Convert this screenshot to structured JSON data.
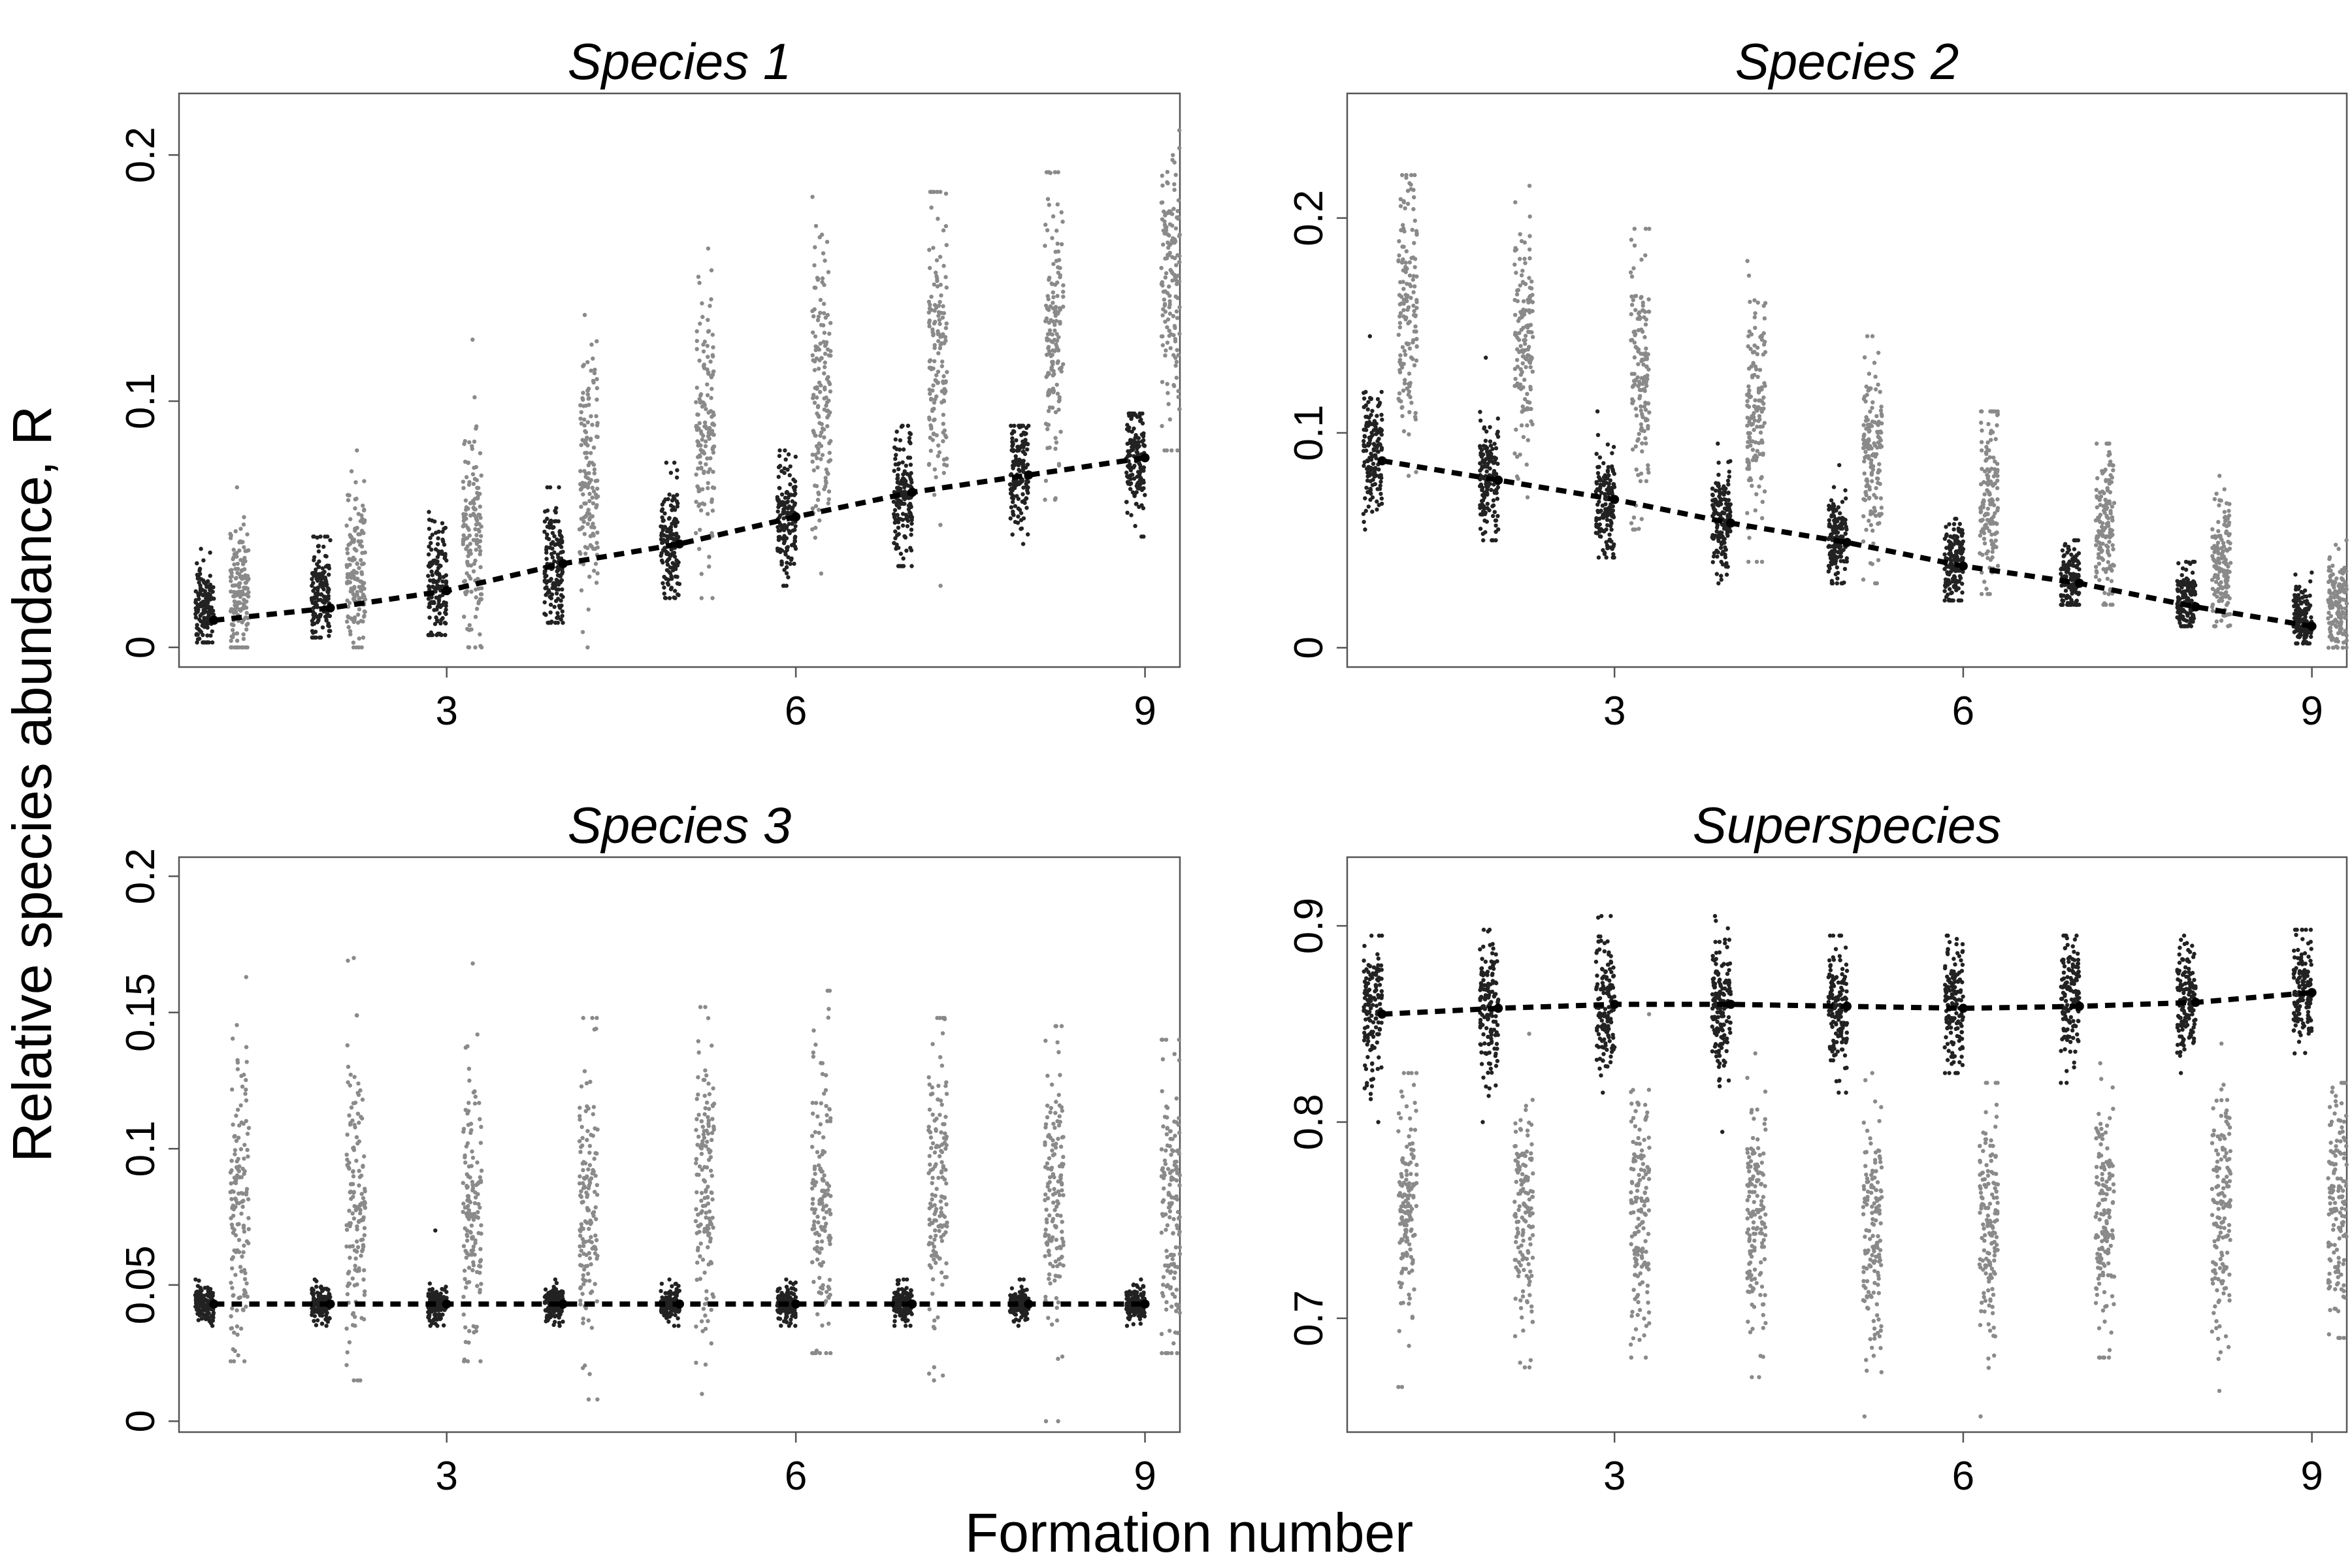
{
  "figure": {
    "xlabel": "Formation number",
    "ylabel": "Relative species abundance, R"
  },
  "chart_data": [
    {
      "type": "scatter",
      "title": "Species 1",
      "x_ticks": [
        3,
        6,
        9
      ],
      "y_ticks": [
        0,
        0.1,
        0.2
      ],
      "y_tick_labels": [
        "0",
        "0.1",
        "0.2"
      ],
      "xlim": [
        0.7,
        9.3
      ],
      "ylim": [
        -0.008,
        0.225
      ],
      "colors": {
        "dark_points": "#222222",
        "light_points": "#8a8a8a",
        "fit_line": "#000000"
      },
      "series": [
        {
          "x": [
            1,
            2,
            3,
            4,
            5,
            6,
            7,
            8,
            9
          ],
          "center": [
            0.016,
            0.022,
            0.027,
            0.032,
            0.042,
            0.052,
            0.062,
            0.07,
            0.076
          ],
          "spread": [
            0.009,
            0.01,
            0.012,
            0.013,
            0.012,
            0.013,
            0.012,
            0.012,
            0.011
          ],
          "min": [
            0.002,
            0.004,
            0.005,
            0.01,
            0.02,
            0.025,
            0.033,
            0.042,
            0.045
          ],
          "max": [
            0.04,
            0.045,
            0.055,
            0.065,
            0.075,
            0.08,
            0.09,
            0.09,
            0.095
          ]
        },
        {
          "x": [
            1,
            2,
            3,
            4,
            5,
            6,
            7,
            8,
            9
          ],
          "center": [
            0.022,
            0.03,
            0.05,
            0.07,
            0.085,
            0.105,
            0.12,
            0.13,
            0.15
          ],
          "spread": [
            0.014,
            0.016,
            0.02,
            0.024,
            0.026,
            0.03,
            0.03,
            0.03,
            0.03
          ],
          "min": [
            0.0,
            0.0,
            0.0,
            0.0,
            0.02,
            0.03,
            0.025,
            0.06,
            0.08
          ],
          "max": [
            0.065,
            0.08,
            0.125,
            0.135,
            0.162,
            0.183,
            0.185,
            0.193,
            0.21
          ]
        }
      ],
      "fit_line": {
        "x": [
          1,
          2,
          3,
          4,
          5,
          6,
          7,
          8,
          9
        ],
        "y": [
          0.011,
          0.016,
          0.023,
          0.034,
          0.042,
          0.053,
          0.063,
          0.07,
          0.077
        ]
      }
    },
    {
      "type": "scatter",
      "title": "Species 2",
      "x_ticks": [
        3,
        6,
        9
      ],
      "y_ticks": [
        0,
        0.1,
        0.2
      ],
      "y_tick_labels": [
        "0",
        "0.1",
        "0.2"
      ],
      "xlim": [
        0.7,
        9.3
      ],
      "ylim": [
        -0.009,
        0.258
      ],
      "colors": {
        "dark_points": "#222222",
        "light_points": "#8a8a8a",
        "fit_line": "#000000"
      },
      "series": [
        {
          "x": [
            1,
            2,
            3,
            4,
            5,
            6,
            7,
            8,
            9
          ],
          "center": [
            0.09,
            0.078,
            0.068,
            0.058,
            0.05,
            0.04,
            0.031,
            0.023,
            0.015
          ],
          "spread": [
            0.014,
            0.014,
            0.013,
            0.012,
            0.011,
            0.01,
            0.009,
            0.008,
            0.007
          ],
          "min": [
            0.055,
            0.05,
            0.042,
            0.03,
            0.03,
            0.022,
            0.02,
            0.01,
            0.002
          ],
          "max": [
            0.145,
            0.135,
            0.11,
            0.095,
            0.085,
            0.06,
            0.05,
            0.04,
            0.035
          ]
        },
        {
          "x": [
            1,
            2,
            3,
            4,
            5,
            6,
            7,
            8,
            9
          ],
          "center": [
            0.16,
            0.14,
            0.125,
            0.11,
            0.09,
            0.07,
            0.058,
            0.04,
            0.02
          ],
          "spread": [
            0.028,
            0.026,
            0.026,
            0.026,
            0.024,
            0.02,
            0.017,
            0.015,
            0.011
          ],
          "min": [
            0.08,
            0.07,
            0.055,
            0.04,
            0.03,
            0.025,
            0.02,
            0.01,
            0.0
          ],
          "max": [
            0.22,
            0.215,
            0.195,
            0.18,
            0.145,
            0.11,
            0.095,
            0.08,
            0.05
          ]
        }
      ],
      "fit_line": {
        "x": [
          1,
          2,
          3,
          4,
          5,
          6,
          7,
          8,
          9
        ],
        "y": [
          0.087,
          0.078,
          0.069,
          0.058,
          0.049,
          0.038,
          0.03,
          0.019,
          0.01
        ]
      }
    },
    {
      "type": "scatter",
      "title": "Species 3",
      "x_ticks": [
        3,
        6,
        9
      ],
      "y_ticks": [
        0,
        0.05,
        0.1,
        0.15,
        0.2
      ],
      "y_tick_labels": [
        "0",
        "0.05",
        "0.1",
        "0.15",
        "0.2"
      ],
      "xlim": [
        0.7,
        9.3
      ],
      "ylim": [
        -0.004,
        0.207
      ],
      "colors": {
        "dark_points": "#222222",
        "light_points": "#8a8a8a",
        "fit_line": "#000000"
      },
      "series": [
        {
          "x": [
            1,
            2,
            3,
            4,
            5,
            6,
            7,
            8,
            9
          ],
          "center": [
            0.043,
            0.043,
            0.043,
            0.043,
            0.043,
            0.043,
            0.043,
            0.043,
            0.043
          ],
          "spread": [
            0.003,
            0.003,
            0.003,
            0.003,
            0.003,
            0.003,
            0.003,
            0.003,
            0.003
          ],
          "min": [
            0.035,
            0.035,
            0.035,
            0.035,
            0.035,
            0.035,
            0.035,
            0.035,
            0.035
          ],
          "max": [
            0.052,
            0.052,
            0.07,
            0.052,
            0.052,
            0.052,
            0.052,
            0.052,
            0.052
          ]
        },
        {
          "x": [
            1,
            2,
            3,
            4,
            5,
            6,
            7,
            8,
            9
          ],
          "center": [
            0.08,
            0.08,
            0.075,
            0.08,
            0.085,
            0.08,
            0.085,
            0.08,
            0.08
          ],
          "spread": [
            0.028,
            0.028,
            0.026,
            0.028,
            0.028,
            0.028,
            0.028,
            0.028,
            0.028
          ],
          "min": [
            0.022,
            0.015,
            0.022,
            0.008,
            0.01,
            0.025,
            0.015,
            0.0,
            0.025
          ],
          "max": [
            0.163,
            0.17,
            0.168,
            0.148,
            0.152,
            0.158,
            0.148,
            0.145,
            0.14
          ]
        }
      ],
      "fit_line": {
        "x": [
          1,
          2,
          3,
          4,
          5,
          6,
          7,
          8,
          9
        ],
        "y": [
          0.043,
          0.043,
          0.043,
          0.043,
          0.043,
          0.043,
          0.043,
          0.043,
          0.043
        ]
      }
    },
    {
      "type": "scatter",
      "title": "Superspecies",
      "x_ticks": [
        3,
        6,
        9
      ],
      "y_ticks": [
        0.7,
        0.8,
        0.9
      ],
      "y_tick_labels": [
        "0.7",
        "0.8",
        "0.9"
      ],
      "xlim": [
        0.7,
        9.3
      ],
      "ylim": [
        0.642,
        0.935
      ],
      "colors": {
        "dark_points": "#222222",
        "light_points": "#8a8a8a",
        "fit_line": "#000000"
      },
      "series": [
        {
          "x": [
            1,
            2,
            3,
            4,
            5,
            6,
            7,
            8,
            9
          ],
          "center": [
            0.855,
            0.858,
            0.86,
            0.86,
            0.858,
            0.858,
            0.86,
            0.862,
            0.868
          ],
          "spread": [
            0.018,
            0.018,
            0.018,
            0.018,
            0.016,
            0.016,
            0.016,
            0.014,
            0.014
          ],
          "min": [
            0.8,
            0.8,
            0.815,
            0.795,
            0.815,
            0.825,
            0.82,
            0.825,
            0.835
          ],
          "max": [
            0.895,
            0.898,
            0.905,
            0.905,
            0.895,
            0.895,
            0.895,
            0.895,
            0.898
          ]
        },
        {
          "x": [
            1,
            2,
            3,
            4,
            5,
            6,
            7,
            8,
            9
          ],
          "center": [
            0.76,
            0.755,
            0.75,
            0.75,
            0.745,
            0.745,
            0.75,
            0.755,
            0.76
          ],
          "spread": [
            0.032,
            0.032,
            0.032,
            0.032,
            0.032,
            0.032,
            0.032,
            0.032,
            0.03
          ],
          "min": [
            0.665,
            0.675,
            0.68,
            0.67,
            0.65,
            0.65,
            0.68,
            0.663,
            0.69
          ],
          "max": [
            0.825,
            0.845,
            0.855,
            0.835,
            0.825,
            0.82,
            0.83,
            0.84,
            0.82
          ]
        }
      ],
      "fit_line": {
        "x": [
          1,
          2,
          3,
          4,
          5,
          6,
          7,
          8,
          9
        ],
        "y": [
          0.855,
          0.858,
          0.86,
          0.86,
          0.859,
          0.858,
          0.859,
          0.861,
          0.866
        ]
      }
    }
  ]
}
